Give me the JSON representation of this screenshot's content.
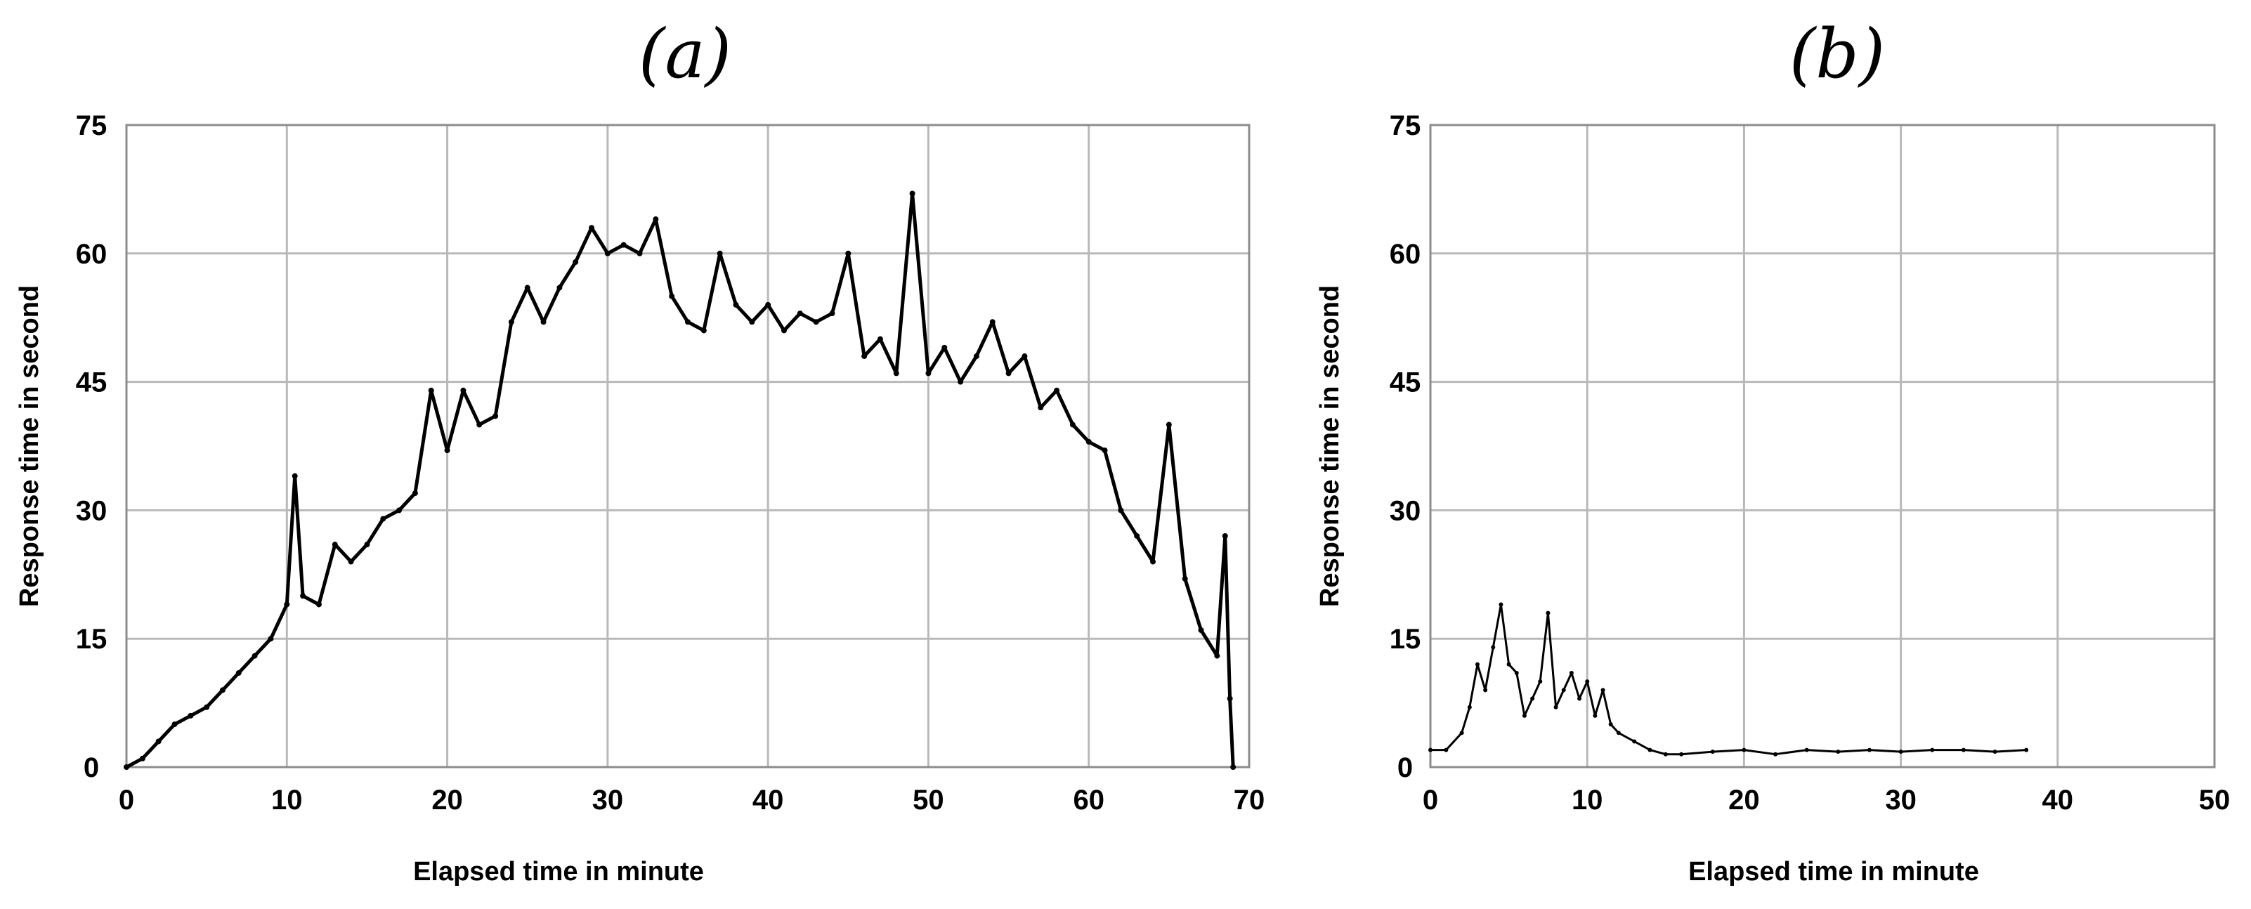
{
  "chart_data": [
    {
      "type": "line",
      "title": "(a)",
      "xlabel": "Elapsed time in minute",
      "ylabel": "Response time in second",
      "xlim": [
        0,
        70
      ],
      "ylim": [
        0,
        75
      ],
      "xticks": [
        "0",
        "10",
        "20",
        "30",
        "40",
        "50",
        "60",
        "70"
      ],
      "yticks": [
        "0",
        "15",
        "30",
        "45",
        "60",
        "75"
      ],
      "grid": true,
      "series_color": "#000000",
      "x": [
        0,
        1,
        2,
        3,
        4,
        5,
        6,
        7,
        8,
        9,
        10,
        10.5,
        11,
        12,
        13,
        14,
        15,
        16,
        17,
        18,
        19,
        20,
        21,
        22,
        23,
        24,
        25,
        26,
        27,
        28,
        29,
        30,
        31,
        32,
        33,
        34,
        35,
        36,
        37,
        38,
        39,
        40,
        41,
        42,
        43,
        44,
        45,
        46,
        47,
        48,
        49,
        50,
        51,
        52,
        53,
        54,
        55,
        56,
        57,
        58,
        59,
        60,
        61,
        62,
        63,
        64,
        65,
        66,
        67,
        68,
        68.5,
        68.8,
        69
      ],
      "y": [
        0,
        1,
        3,
        5,
        6,
        7,
        9,
        11,
        13,
        15,
        19,
        34,
        20,
        19,
        26,
        24,
        26,
        29,
        30,
        32,
        44,
        37,
        44,
        40,
        41,
        52,
        56,
        52,
        56,
        59,
        63,
        60,
        61,
        60,
        64,
        55,
        52,
        51,
        60,
        54,
        52,
        54,
        51,
        53,
        52,
        53,
        60,
        48,
        50,
        46,
        67,
        46,
        49,
        45,
        48,
        52,
        46,
        48,
        42,
        44,
        40,
        38,
        37,
        30,
        27,
        24,
        40,
        22,
        16,
        13,
        27,
        8,
        0
      ]
    },
    {
      "type": "line",
      "title": "(b)",
      "xlabel": "Elapsed time in minute",
      "ylabel": "Response time in second",
      "xlim": [
        0,
        50
      ],
      "ylim": [
        0,
        75
      ],
      "xticks": [
        "0",
        "10",
        "20",
        "30",
        "40",
        "50"
      ],
      "yticks": [
        "0",
        "15",
        "30",
        "45",
        "60",
        "75"
      ],
      "grid": true,
      "series_color": "#000000",
      "x": [
        0,
        1,
        2,
        2.5,
        3,
        3.5,
        4,
        4.5,
        5,
        5.5,
        6,
        6.5,
        7,
        7.5,
        8,
        8.5,
        9,
        9.5,
        10,
        10.5,
        11,
        11.5,
        12,
        13,
        14,
        15,
        16,
        18,
        20,
        22,
        24,
        26,
        28,
        30,
        32,
        34,
        36,
        38
      ],
      "y": [
        2,
        2,
        4,
        7,
        12,
        9,
        14,
        19,
        12,
        11,
        6,
        8,
        10,
        18,
        7,
        9,
        11,
        8,
        10,
        6,
        9,
        5,
        4,
        3,
        2,
        1.5,
        1.5,
        1.8,
        2,
        1.5,
        2,
        1.8,
        2,
        1.8,
        2,
        2,
        1.8,
        2
      ]
    }
  ]
}
